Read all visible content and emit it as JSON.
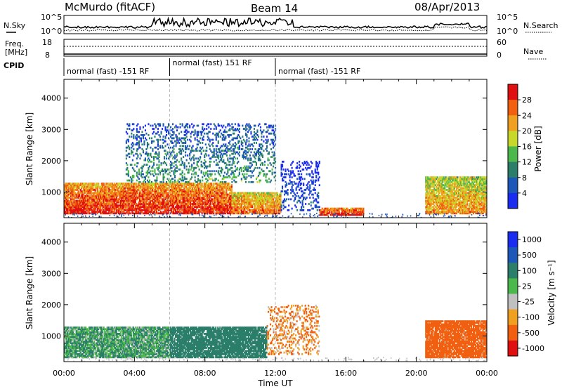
{
  "header": {
    "station": "McMurdo (fitACF)",
    "beam": "Beam 14",
    "date": "08/Apr/2013"
  },
  "noise_panel": {
    "left_label": "N.Sky",
    "right_label": "N.Search",
    "left_ticks": [
      "10^5",
      "10^0"
    ],
    "right_ticks": [
      "10^5",
      "10^0"
    ]
  },
  "freq_panel": {
    "left_label_line1": "Freq.",
    "left_label_line2": "[MHz]",
    "right_label": "Nave",
    "left_ticks": [
      "18",
      "8"
    ],
    "right_ticks": [
      "60",
      "0"
    ]
  },
  "cpid": {
    "label": "CPID",
    "segments": [
      {
        "text": "normal (fast) -151 RF",
        "start_hr": 0,
        "end_hr": 6
      },
      {
        "text": "normal (fast) 151 RF",
        "start_hr": 6,
        "end_hr": 12
      },
      {
        "text": "normal (fast) -151 RF",
        "start_hr": 12,
        "end_hr": 24
      }
    ]
  },
  "chart_data": [
    {
      "type": "heatmap",
      "name": "Power",
      "xlabel": "",
      "ylabel": "Slant Range [km]",
      "xlim_hr": [
        0,
        24
      ],
      "ylim": [
        180,
        4600
      ],
      "y_ticks": [
        1000,
        2000,
        3000,
        4000
      ],
      "colorbar": {
        "label": "Power [dB]",
        "range": [
          0,
          32
        ],
        "ticks": [
          "4",
          "8",
          "12",
          "16",
          "20",
          "24",
          "28"
        ],
        "colors": [
          "#1a2cf0",
          "#1b58b8",
          "#2a7e6a",
          "#4bb84b",
          "#c8d82a",
          "#f0a020",
          "#f06010",
          "#e01010"
        ]
      },
      "features": [
        {
          "t0": 0.0,
          "t1": 9.5,
          "r0": 300,
          "r1": 1300,
          "value_db": 30
        },
        {
          "t0": 9.5,
          "t1": 12.3,
          "r0": 300,
          "r1": 1000,
          "value_db": 26
        },
        {
          "t0": 12.3,
          "t1": 14.5,
          "r0": 400,
          "r1": 2000,
          "value_db": 6
        },
        {
          "t0": 14.5,
          "t1": 17.0,
          "r0": 250,
          "r1": 500,
          "value_db": 30
        },
        {
          "t0": 20.5,
          "t1": 24.0,
          "r0": 300,
          "r1": 1500,
          "value_db": 24
        },
        {
          "t0": 3.5,
          "t1": 12.0,
          "r0": 1300,
          "r1": 3200,
          "value_db": 12
        }
      ]
    },
    {
      "type": "heatmap",
      "name": "Velocity",
      "xlabel": "Time UT",
      "ylabel": "Slant Range [km]",
      "xlim_hr": [
        0,
        24
      ],
      "ylim": [
        180,
        4600
      ],
      "y_ticks": [
        1000,
        2000,
        3000,
        4000
      ],
      "x_ticks": [
        "00:00",
        "04:00",
        "08:00",
        "12:00",
        "16:00",
        "20:00",
        "00:00"
      ],
      "colorbar": {
        "label": "Velocity [m s⁻¹]",
        "ticks": [
          "1000",
          "500",
          "100",
          "25",
          "-25",
          "-100",
          "-500",
          "-1000"
        ],
        "colors": [
          "#1a2cf0",
          "#1b58b8",
          "#2a7e6a",
          "#4bb84b",
          "#c0c0c0",
          "#f0a020",
          "#f06010",
          "#e01010"
        ]
      },
      "features": [
        {
          "t0": 0.0,
          "t1": 6.0,
          "r0": 300,
          "r1": 1300,
          "value": 100
        },
        {
          "t0": 6.0,
          "t1": 11.5,
          "r0": 300,
          "r1": 1300,
          "value": 200
        },
        {
          "t0": 11.5,
          "t1": 14.5,
          "r0": 400,
          "r1": 2000,
          "value": -100
        },
        {
          "t0": 20.5,
          "t1": 24.0,
          "r0": 300,
          "r1": 1500,
          "value": -200
        }
      ]
    }
  ]
}
